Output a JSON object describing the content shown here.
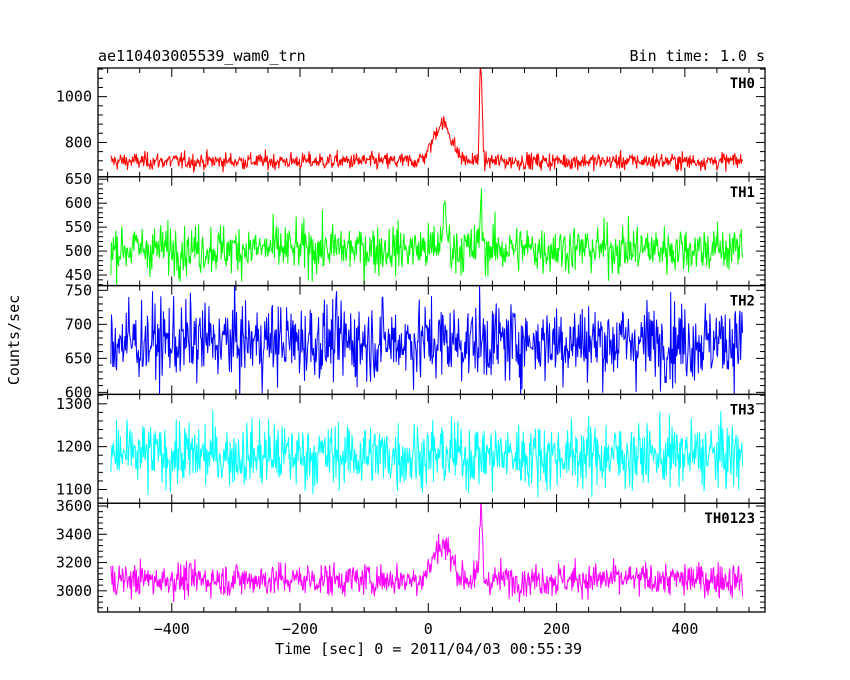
{
  "header": {
    "title": "ae110403005539_wam0_trn",
    "bin_time": "Bin time: 1.0 s"
  },
  "chart_data": {
    "type": "line",
    "xlabel": "Time [sec] 0 = 2011/04/03 00:55:39",
    "ylabel": "Counts/sec",
    "xlim": [
      -515,
      525
    ],
    "x_ticks": [
      -400,
      -200,
      0,
      200,
      400
    ],
    "x_range_data": [
      -495,
      490
    ],
    "grid": false,
    "panels": [
      {
        "name": "TH0",
        "color": "#ff0000",
        "ylim": [
          650,
          1125
        ],
        "yticks": [
          800,
          1000
        ],
        "baseline": 718,
        "noise": 22,
        "features": [
          {
            "t": 22,
            "width": 14,
            "amp": 165
          },
          {
            "t": 82,
            "width": 2,
            "amp": 420
          }
        ]
      },
      {
        "name": "TH1",
        "color": "#00ff00",
        "ylim": [
          428,
          655
        ],
        "yticks": [
          450,
          500,
          550,
          600,
          650
        ],
        "baseline": 505,
        "noise": 30,
        "features": [
          {
            "t": 25,
            "width": 4,
            "amp": 70
          },
          {
            "t": 82,
            "width": 2,
            "amp": 90
          }
        ]
      },
      {
        "name": "TH2",
        "color": "#0000ff",
        "ylim": [
          597,
          757
        ],
        "yticks": [
          600,
          650,
          700,
          750
        ],
        "baseline": 675,
        "noise": 34,
        "features": []
      },
      {
        "name": "TH3",
        "color": "#00ffff",
        "ylim": [
          1068,
          1322
        ],
        "yticks": [
          1100,
          1200,
          1300
        ],
        "baseline": 1180,
        "noise": 45,
        "features": []
      },
      {
        "name": "TH0123",
        "color": "#ff00ff",
        "ylim": [
          2850,
          3620
        ],
        "yticks": [
          3000,
          3200,
          3400,
          3600
        ],
        "baseline": 3080,
        "noise": 70,
        "features": [
          {
            "t": 22,
            "width": 14,
            "amp": 250
          },
          {
            "t": 82,
            "width": 2,
            "amp": 530
          }
        ]
      }
    ]
  }
}
